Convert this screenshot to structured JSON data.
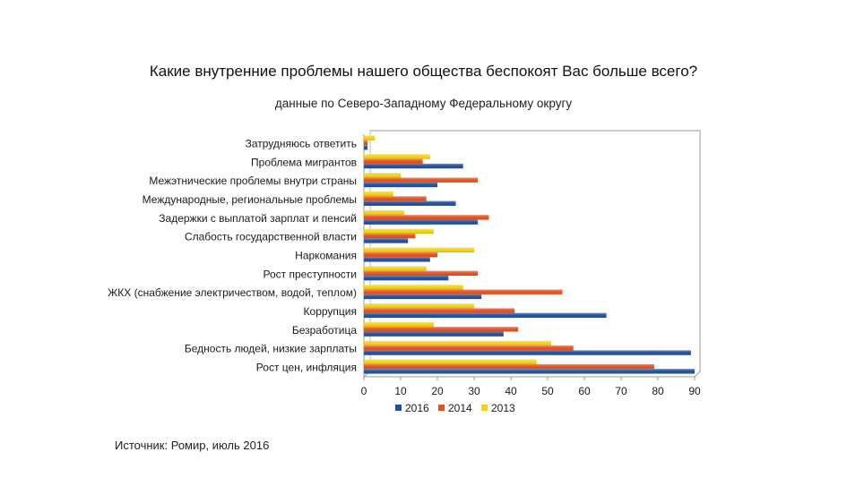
{
  "chart_data": {
    "type": "bar",
    "orientation": "horizontal",
    "title": "Какие внутренние проблемы нашего общества беспокоят Вас больше всего?",
    "subtitle": "данные по Северо-Западному Федеральному округу",
    "categories": [
      "Затрудняюсь ответить",
      "Проблема мигрантов",
      "Межэтнические проблемы внутри страны",
      "Международные, региональные проблемы",
      "Задержки с выплатой зарплат и пенсий",
      "Слабость государственной власти",
      "Наркомания",
      "Рост преступности",
      "ЖКХ (снабжение электричеством, водой, теплом)",
      "Коррупция",
      "Безработица",
      "Бедность людей, низкие зарплаты",
      "Рост цен, инфляция"
    ],
    "series": [
      {
        "name": "2016",
        "color": "#1f4e9c",
        "values": [
          1,
          27,
          20,
          25,
          31,
          12,
          18,
          23,
          32,
          66,
          38,
          89,
          90
        ]
      },
      {
        "name": "2014",
        "color": "#e94e1b",
        "values": [
          1,
          16,
          31,
          17,
          34,
          14,
          20,
          31,
          54,
          41,
          42,
          57,
          79
        ]
      },
      {
        "name": "2013",
        "color": "#f5d110",
        "values": [
          3,
          18,
          10,
          8,
          11,
          19,
          30,
          17,
          27,
          30,
          19,
          51,
          47
        ]
      }
    ],
    "xlim": [
      0,
      90
    ],
    "xticks": [
      "0",
      "10",
      "20",
      "30",
      "40",
      "50",
      "60",
      "70",
      "80",
      "90"
    ],
    "grid": false,
    "legend_position": "bottom"
  },
  "footer": {
    "source": "Источник: Ромир, июль 2016"
  }
}
